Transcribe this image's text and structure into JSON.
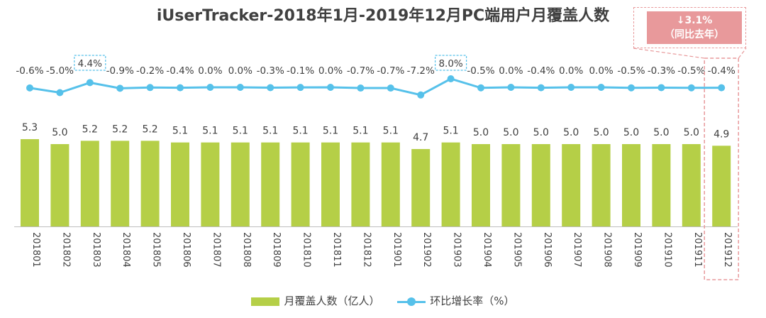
{
  "title": "iUserTracker-2018年1月-2019年12月PC端用户月覆盖人数",
  "callout": {
    "line1": "↓3.1%",
    "line2": "（同比去年）"
  },
  "legend": {
    "bar": "月覆盖人数（亿人）",
    "line": "环比增长率（%）"
  },
  "colors": {
    "bar": "#b5cf47",
    "line": "#56c1ea",
    "highlight": "#e8999b",
    "highlight_box": "#56c1ea"
  },
  "chart_data": {
    "type": "bar",
    "categories": [
      "201801",
      "201802",
      "201803",
      "201804",
      "201805",
      "201806",
      "201807",
      "201808",
      "201809",
      "201810",
      "201811",
      "201812",
      "201901",
      "201902",
      "201903",
      "201904",
      "201905",
      "201906",
      "201907",
      "201908",
      "201909",
      "201910",
      "201911",
      "201912"
    ],
    "series": [
      {
        "name": "月覆盖人数（亿人）",
        "type": "bar",
        "values": [
          5.3,
          5.0,
          5.2,
          5.2,
          5.2,
          5.1,
          5.1,
          5.1,
          5.1,
          5.1,
          5.1,
          5.1,
          5.1,
          4.7,
          5.1,
          5.0,
          5.0,
          5.0,
          5.0,
          5.0,
          5.0,
          5.0,
          5.0,
          4.9
        ],
        "labels": [
          "5.3",
          "5.0",
          "5.2",
          "5.2",
          "5.2",
          "5.1",
          "5.1",
          "5.1",
          "5.1",
          "5.1",
          "5.1",
          "5.1",
          "5.1",
          "4.7",
          "5.1",
          "5.0",
          "5.0",
          "5.0",
          "5.0",
          "5.0",
          "5.0",
          "5.0",
          "5.0",
          "4.9"
        ]
      },
      {
        "name": "环比增长率（%）",
        "type": "line",
        "values": [
          -0.6,
          -5.0,
          4.4,
          -0.9,
          -0.2,
          -0.4,
          0.0,
          0.0,
          -0.3,
          -0.1,
          0.0,
          -0.7,
          -0.7,
          -7.2,
          8.0,
          -0.5,
          0.0,
          -0.4,
          0.0,
          0.0,
          -0.5,
          -0.3,
          -0.5,
          -0.4
        ],
        "labels": [
          "-0.6%",
          "-5.0%",
          "4.4%",
          "-0.9%",
          "-0.2%",
          "-0.4%",
          "0.0%",
          "0.0%",
          "-0.3%",
          "-0.1%",
          "0.0%",
          "-0.7%",
          "-0.7%",
          "-7.2%",
          "8.0%",
          "-0.5%",
          "0.0%",
          "-0.4%",
          "0.0%",
          "0.0%",
          "-0.5%",
          "-0.3%",
          "-0.5%",
          "-0.4%"
        ],
        "highlighted": [
          "201803",
          "201903"
        ]
      }
    ],
    "highlighted_category": "201912",
    "bar_ylim": [
      0,
      5.5
    ],
    "line_ylim": [
      -8,
      8
    ]
  }
}
